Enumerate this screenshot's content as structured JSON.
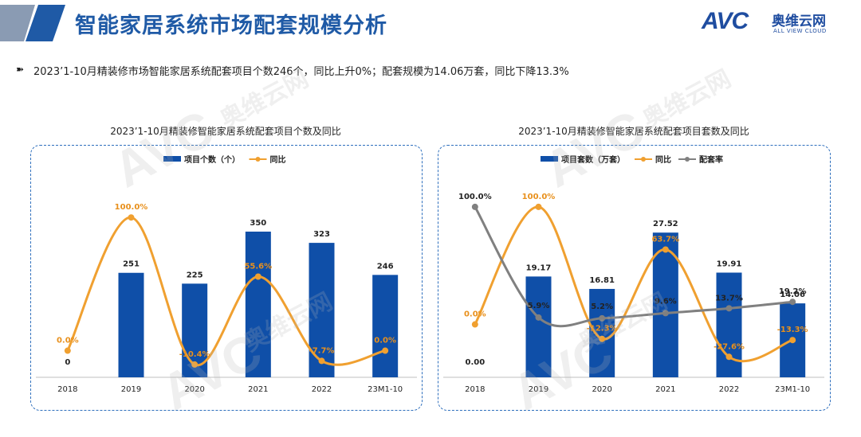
{
  "header": {
    "title": "智能家居系统市场配套规模分析"
  },
  "logo": {
    "brand": "AVC",
    "name_cn": "奥维云网",
    "name_en": "ALL VIEW CLOUD"
  },
  "watermark": {
    "brand": "AVC",
    "name_cn": "奥维云网",
    "name_en": "ALL VIEW CLOUD"
  },
  "summary": {
    "text": "2023’1-10月精装修市场智能家居系统配套项目个数246个，同比上升0%；配套规模为14.06万套，同比下降13.3%"
  },
  "colors": {
    "title_blue": "#1f5aa6",
    "bar_blue": "#0f4fa8",
    "line_orange": "#f0a030",
    "line_gray": "#808080",
    "panel_border": "#2e6fbd"
  },
  "chart_data": [
    {
      "type": "bar+line",
      "title": "2023’1-10月精装修智能家居系统配套项目个数及同比",
      "categories": [
        "2018",
        "2019",
        "2020",
        "2021",
        "2022",
        "23M1-10"
      ],
      "series": [
        {
          "name": "项目个数（个）",
          "kind": "bar",
          "values": [
            0,
            251,
            225,
            350,
            323,
            246
          ],
          "labels": [
            "0",
            "251",
            "225",
            "350",
            "323",
            "246"
          ]
        },
        {
          "name": "同比",
          "kind": "line",
          "values": [
            0.0,
            100.0,
            -10.4,
            55.6,
            -7.7,
            0.0
          ],
          "labels": [
            "0.0%",
            "100.0%",
            "-10.4%",
            "55.6%",
            "-7.7%",
            "0.0%"
          ]
        }
      ],
      "bar_ylim": [
        0,
        480
      ],
      "line_ylim": [
        -20,
        130
      ],
      "legend": "top-left"
    },
    {
      "type": "bar+line",
      "title": "2023’1-10月精装修智能家居系统配套项目套数及同比",
      "categories": [
        "2018",
        "2019",
        "2020",
        "2021",
        "2022",
        "23M1-10"
      ],
      "series": [
        {
          "name": "项目套数（万套）",
          "kind": "bar",
          "values": [
            0.0,
            19.17,
            16.81,
            27.52,
            19.91,
            14.06
          ],
          "labels": [
            "0.00",
            "19.17",
            "16.81",
            "27.52",
            "19.91",
            "14.06"
          ]
        },
        {
          "name": "同比",
          "kind": "line",
          "values": [
            0.0,
            100.0,
            -12.3,
            63.7,
            -27.6,
            -13.3
          ],
          "labels": [
            "0.0%",
            "100.0%",
            "-12.3%",
            "63.7%",
            "-27.6%",
            "-13.3%"
          ]
        },
        {
          "name": "配套率",
          "kind": "line",
          "values": [
            100.0,
            5.9,
            5.2,
            9.6,
            13.7,
            19.2
          ],
          "labels": [
            "100.0%",
            "5.9%",
            "5.2%",
            "9.6%",
            "13.7%",
            "19.2%"
          ]
        }
      ],
      "bar_ylim": [
        0,
        38
      ],
      "line_ylim": [
        -45,
        125
      ],
      "legend": "top-left"
    }
  ]
}
